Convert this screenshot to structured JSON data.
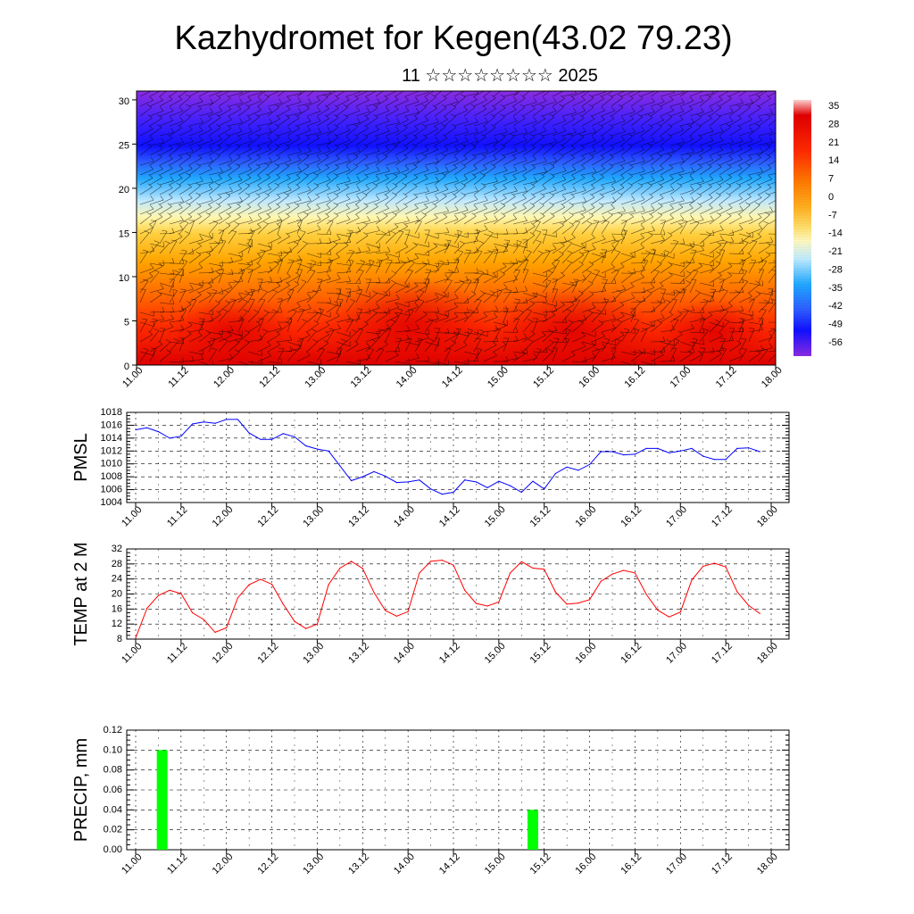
{
  "title": "Kazhydromet for Kegen(43.02 79.23)",
  "subtitle": "11 ☆☆☆☆☆☆☆☆ 2025",
  "x_ticks": [
    "11.00",
    "11.12",
    "12.00",
    "12.12",
    "13.00",
    "13.12",
    "14.00",
    "14.12",
    "15.00",
    "15.12",
    "16.00",
    "16.12",
    "17.00",
    "17.12",
    "18.00"
  ],
  "chart_data": [
    {
      "type": "heatmap",
      "title": "",
      "x_range": [
        0,
        168
      ],
      "ylim": [
        0,
        31
      ],
      "yticks": [
        "0",
        "5",
        "10",
        "15",
        "20",
        "25",
        "30"
      ],
      "colorbar_labels": [
        "35",
        "28",
        "21",
        "14",
        "7",
        "0",
        "-7",
        "-14",
        "-21",
        "-28",
        "-35",
        "-42",
        "-49",
        "-56"
      ],
      "colormap": [
        "#cc0000",
        "#ff2200",
        "#ff6a00",
        "#ffa500",
        "#ffd040",
        "#fff7b0",
        "#a0e0ff",
        "#20a8ff",
        "#3030ff",
        "#2000e0",
        "#8a2be2"
      ],
      "note_overlay": "wind barbs"
    },
    {
      "type": "line",
      "ylabel": "PMSL",
      "color": "#0000ff",
      "ylim": [
        1004,
        1018
      ],
      "yticks": [
        "1004",
        "1006",
        "1008",
        "1010",
        "1012",
        "1014",
        "1016",
        "1018"
      ],
      "x_hours": [
        0,
        3,
        6,
        9,
        12,
        15,
        18,
        21,
        24,
        27,
        30,
        33,
        36,
        39,
        42,
        45,
        48,
        51,
        54,
        57,
        60,
        63,
        66,
        69,
        72,
        75,
        78,
        81,
        84,
        87,
        90,
        93,
        96,
        99,
        102,
        105,
        108,
        111,
        114,
        117,
        120,
        123,
        126,
        129,
        132,
        135,
        138,
        141,
        144,
        147,
        150,
        153,
        156,
        159,
        162,
        165
      ],
      "values": [
        1015.3,
        1015.6,
        1015.0,
        1014.0,
        1014.3,
        1016.2,
        1016.5,
        1016.3,
        1016.9,
        1016.9,
        1014.8,
        1013.8,
        1013.8,
        1014.7,
        1014.2,
        1012.8,
        1012.3,
        1012.0,
        1009.7,
        1007.4,
        1008.0,
        1008.8,
        1008.1,
        1007.1,
        1007.2,
        1007.5,
        1006.1,
        1005.3,
        1005.6,
        1007.5,
        1007.2,
        1006.3,
        1007.3,
        1006.6,
        1005.6,
        1007.3,
        1006.1,
        1008.5,
        1009.5,
        1009.0,
        1009.9,
        1011.9,
        1011.9,
        1011.4,
        1011.5,
        1012.4,
        1012.4,
        1011.7,
        1012.0,
        1012.4,
        1011.2,
        1010.7,
        1010.7,
        1012.4,
        1012.5,
        1011.9
      ]
    },
    {
      "type": "line",
      "ylabel": "TEMP at 2 M",
      "color": "#ff0000",
      "ylim": [
        8,
        32
      ],
      "yticks": [
        "8",
        "12",
        "16",
        "20",
        "24",
        "28",
        "32"
      ],
      "x_hours": [
        0,
        3,
        6,
        9,
        12,
        15,
        18,
        21,
        24,
        27,
        30,
        33,
        36,
        39,
        42,
        45,
        48,
        51,
        54,
        57,
        60,
        63,
        66,
        69,
        72,
        75,
        78,
        81,
        84,
        87,
        90,
        93,
        96,
        99,
        102,
        105,
        108,
        111,
        114,
        117,
        120,
        123,
        126,
        129,
        132,
        135,
        138,
        141,
        144,
        147,
        150,
        153,
        156,
        159,
        162,
        165
      ],
      "values": [
        8.3,
        16.2,
        19.6,
        21.0,
        20.1,
        15.0,
        13.2,
        9.8,
        11.0,
        19.0,
        22.5,
        23.9,
        22.6,
        17.3,
        12.7,
        10.8,
        12.0,
        22.5,
        26.9,
        28.7,
        26.8,
        20.4,
        15.6,
        14.1,
        15.3,
        25.6,
        28.7,
        29.0,
        27.7,
        21.0,
        17.5,
        16.8,
        17.9,
        25.6,
        28.6,
        26.9,
        26.6,
        20.5,
        17.3,
        17.6,
        18.5,
        23.4,
        25.3,
        26.3,
        25.6,
        19.9,
        15.7,
        13.9,
        15.2,
        23.7,
        27.4,
        28.2,
        27.2,
        20.6,
        17.0,
        14.8
      ]
    },
    {
      "type": "bar",
      "ylabel": "PRECIP, mm",
      "color": "#00ff00",
      "ylim": [
        0,
        0.12
      ],
      "yticks": [
        "0.00",
        "0.02",
        "0.04",
        "0.06",
        "0.08",
        "0.10",
        "0.12"
      ],
      "bars": [
        {
          "x_hour": 7,
          "value": 0.1
        },
        {
          "x_hour": 105,
          "value": 0.04
        }
      ]
    }
  ]
}
